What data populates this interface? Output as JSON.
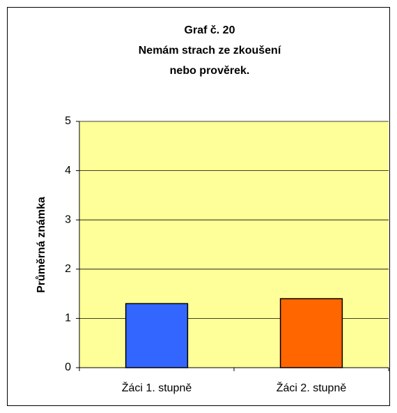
{
  "chart_data": {
    "type": "bar",
    "title": [
      "Graf č. 20",
      "Nemám strach ze zkoušení",
      "nebo prověrek."
    ],
    "y_label": "Průměrná známka",
    "categories": [
      "Žáci 1. stupně",
      "Žáci 2. stupně"
    ],
    "values": [
      1.3,
      1.4
    ],
    "colors": [
      "#3366ff",
      "#ff6600"
    ],
    "plot_background": "#ffff99",
    "ylim": [
      0,
      5
    ],
    "yticks": [
      0,
      1,
      2,
      3,
      4,
      5
    ],
    "grid": true
  }
}
